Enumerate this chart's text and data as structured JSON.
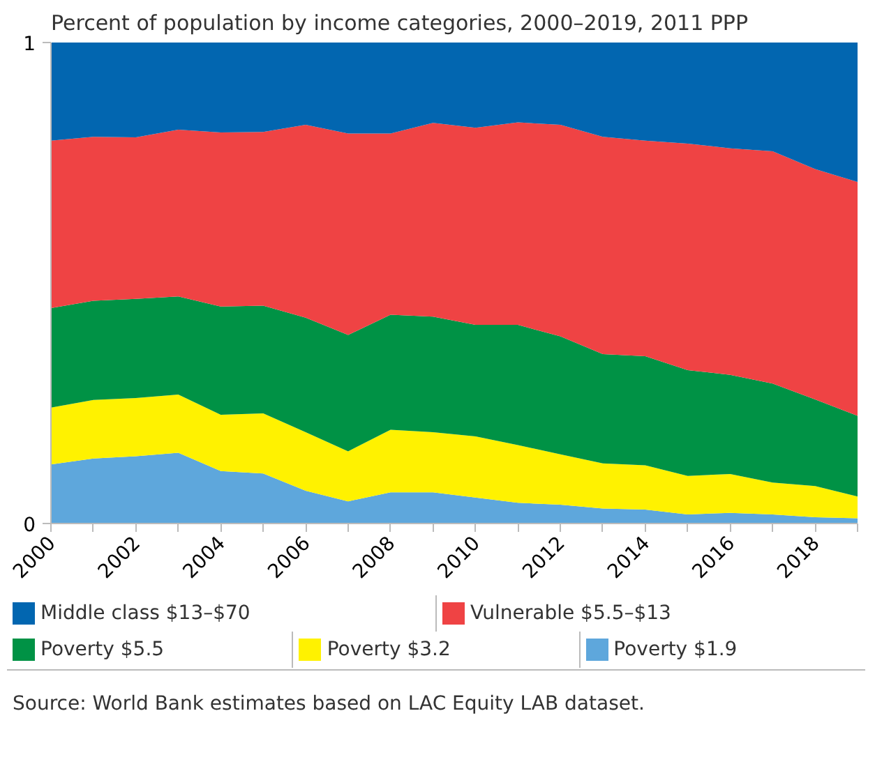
{
  "chart_data": {
    "type": "area",
    "stacked": true,
    "title": "Percent of population by income categories, 2000–2019, 2011 PPP",
    "x": [
      2000,
      2001,
      2002,
      2003,
      2004,
      2005,
      2006,
      2007,
      2008,
      2009,
      2010,
      2011,
      2012,
      2013,
      2014,
      2015,
      2016,
      2017,
      2018,
      2019
    ],
    "series": [
      {
        "name": "Poverty $1.9",
        "color": "#5ea7dc",
        "values": [
          0.123,
          0.135,
          0.14,
          0.147,
          0.109,
          0.104,
          0.068,
          0.046,
          0.065,
          0.065,
          0.054,
          0.043,
          0.039,
          0.031,
          0.029,
          0.019,
          0.022,
          0.019,
          0.013,
          0.011
        ]
      },
      {
        "name": "Poverty $3.2",
        "color": "#fff200",
        "values": [
          0.118,
          0.122,
          0.121,
          0.121,
          0.117,
          0.125,
          0.122,
          0.104,
          0.13,
          0.125,
          0.127,
          0.12,
          0.105,
          0.094,
          0.092,
          0.08,
          0.081,
          0.066,
          0.065,
          0.045
        ]
      },
      {
        "name": "Poverty $5.5",
        "color": "#009245",
        "values": [
          0.207,
          0.206,
          0.206,
          0.204,
          0.225,
          0.224,
          0.238,
          0.242,
          0.239,
          0.24,
          0.232,
          0.25,
          0.245,
          0.227,
          0.227,
          0.22,
          0.206,
          0.206,
          0.18,
          0.168
        ]
      },
      {
        "name": "Vulnerable $5.5–$13",
        "color": "#ef4344",
        "values": [
          0.348,
          0.341,
          0.336,
          0.347,
          0.362,
          0.361,
          0.401,
          0.419,
          0.377,
          0.403,
          0.41,
          0.421,
          0.44,
          0.452,
          0.448,
          0.471,
          0.471,
          0.483,
          0.479,
          0.486
        ]
      },
      {
        "name": "Middle class $13–$70",
        "color": "#0266b0",
        "values": [
          0.204,
          0.196,
          0.197,
          0.181,
          0.187,
          0.186,
          0.171,
          0.189,
          0.189,
          0.167,
          0.177,
          0.166,
          0.171,
          0.196,
          0.204,
          0.21,
          0.22,
          0.226,
          0.263,
          0.29
        ]
      }
    ],
    "xlim": [
      2000,
      2019
    ],
    "xticks": [
      2000,
      {
        "value": 2001,
        "label": null
      },
      2002,
      {
        "value": 2003,
        "label": null
      },
      2004,
      {
        "value": 2005,
        "label": null
      },
      2006,
      {
        "value": 2007,
        "label": null
      },
      2008,
      {
        "value": 2009,
        "label": null
      },
      2010,
      {
        "value": 2011,
        "label": null
      },
      2012,
      {
        "value": 2013,
        "label": null
      },
      2014,
      {
        "value": 2015,
        "label": null
      },
      2016,
      {
        "value": 2017,
        "label": null
      },
      2018,
      {
        "value": 2019,
        "label": null
      }
    ],
    "ylim": [
      0,
      1
    ],
    "yticks": [
      0,
      1
    ],
    "grid": false,
    "legend": "bottom",
    "annotations": [
      "Source: World Bank estimates based on LAC Equity LAB dataset."
    ]
  }
}
